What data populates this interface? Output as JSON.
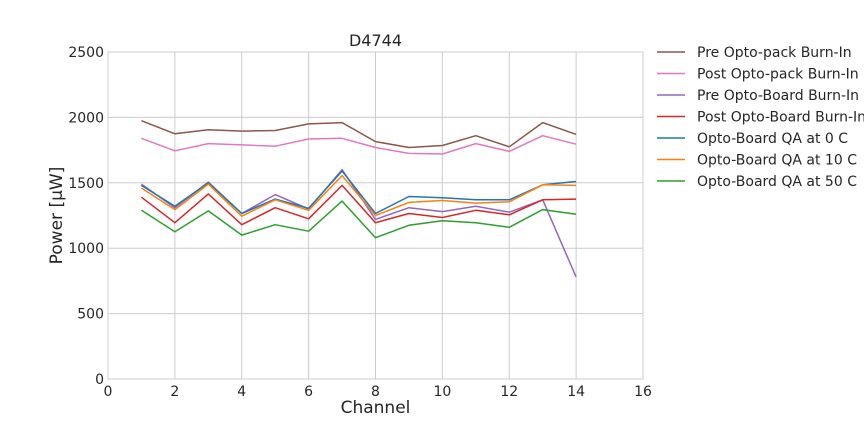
{
  "chart_data": {
    "type": "line",
    "title": "D4744",
    "xlabel": "Channel",
    "ylabel": "Power [μW]",
    "xlim": [
      0,
      16
    ],
    "ylim": [
      0,
      2500
    ],
    "xticks": [
      0,
      2,
      4,
      6,
      8,
      10,
      12,
      14,
      16
    ],
    "yticks": [
      0,
      500,
      1000,
      1500,
      2000,
      2500
    ],
    "grid": true,
    "legend_position": "outside-right",
    "x": [
      1,
      2,
      3,
      4,
      5,
      6,
      7,
      8,
      9,
      10,
      11,
      12,
      13,
      14
    ],
    "series": [
      {
        "name": "Pre Opto-pack Burn-In",
        "color": "#8c564b",
        "values": [
          1975,
          1875,
          1905,
          1895,
          1900,
          1950,
          1960,
          1815,
          1770,
          1785,
          1860,
          1775,
          1960,
          1870
        ]
      },
      {
        "name": "Post Opto-pack Burn-In",
        "color": "#e377c2",
        "values": [
          1840,
          1745,
          1800,
          1790,
          1780,
          1835,
          1840,
          1770,
          1725,
          1720,
          1800,
          1740,
          1860,
          1795
        ]
      },
      {
        "name": "Pre Opto-Board Burn-In",
        "color": "#9467bd",
        "values": [
          1490,
          1310,
          1505,
          1265,
          1410,
          1300,
          1600,
          1220,
          1310,
          1280,
          1320,
          1275,
          1370,
          780
        ]
      },
      {
        "name": "Post Opto-Board Burn-In",
        "color": "#d62728",
        "values": [
          1390,
          1195,
          1415,
          1180,
          1310,
          1225,
          1480,
          1195,
          1265,
          1235,
          1290,
          1255,
          1370,
          1375
        ]
      },
      {
        "name": "Opto-Board QA at 0 C",
        "color": "#1f77b4",
        "values": [
          1480,
          1320,
          1500,
          1265,
          1375,
          1305,
          1590,
          1265,
          1395,
          1385,
          1370,
          1370,
          1485,
          1510
        ]
      },
      {
        "name": "Opto-Board QA at 10 C",
        "color": "#ff7f0e",
        "values": [
          1460,
          1295,
          1490,
          1245,
          1370,
          1290,
          1555,
          1250,
          1350,
          1365,
          1345,
          1355,
          1485,
          1480
        ]
      },
      {
        "name": "Opto-Board QA at 50 C",
        "color": "#2ca02c",
        "values": [
          1290,
          1125,
          1285,
          1100,
          1180,
          1130,
          1360,
          1080,
          1175,
          1210,
          1195,
          1160,
          1295,
          1260
        ]
      }
    ]
  }
}
